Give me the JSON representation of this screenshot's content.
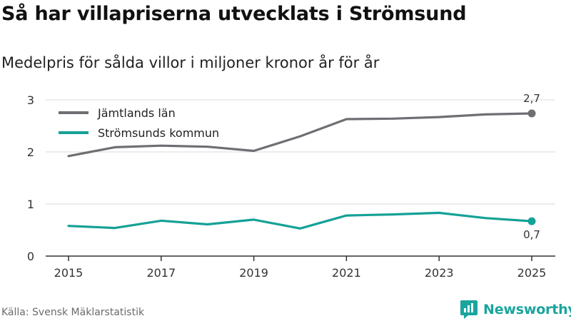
{
  "title": "Så har villapriserna utvecklats i Strömsund",
  "subtitle": "Medelpris för sålda villor i miljoner kronor år för år",
  "source": "Källa: Svensk Mäklarstatistik",
  "brand": {
    "name": "Newsworthy",
    "icon": "newsworthy-logo-icon"
  },
  "colors": {
    "grid": "#d9d9d9",
    "axis": "#333333",
    "brand": "#1aa59d"
  },
  "chart_data": {
    "type": "line",
    "title": "Så har villapriserna utvecklats i Strömsund",
    "xlabel": "",
    "ylabel": "",
    "x": [
      2015,
      2016,
      2017,
      2018,
      2019,
      2020,
      2021,
      2022,
      2023,
      2024,
      2025
    ],
    "xticks": [
      2015,
      2017,
      2019,
      2021,
      2023,
      2025
    ],
    "yticks": [
      0,
      1,
      2,
      3
    ],
    "xlim": [
      2015,
      2025
    ],
    "ylim": [
      0,
      3
    ],
    "grid": true,
    "legend_position": "top-left",
    "series": [
      {
        "name": "Jämtlands län",
        "color": "#6f6e73",
        "values": [
          1.92,
          2.09,
          2.12,
          2.1,
          2.02,
          2.3,
          2.63,
          2.64,
          2.67,
          2.72,
          2.74
        ],
        "end_label": "2,7"
      },
      {
        "name": "Strömsunds kommun",
        "color": "#15a197",
        "values": [
          0.58,
          0.54,
          0.68,
          0.61,
          0.7,
          0.53,
          0.78,
          0.8,
          0.83,
          0.73,
          0.67
        ],
        "end_label": "0,7"
      }
    ]
  }
}
